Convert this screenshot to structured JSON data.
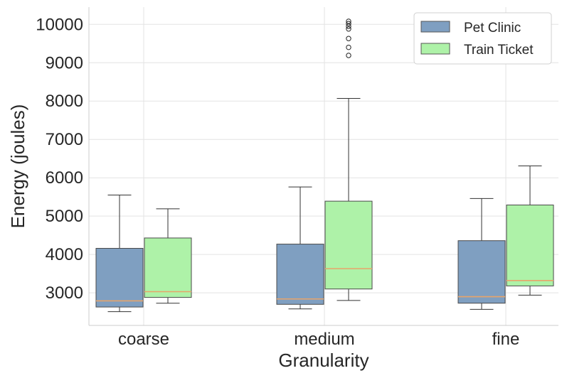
{
  "chart_data": {
    "type": "box",
    "categories": [
      "coarse",
      "medium",
      "fine"
    ],
    "xlabel": "Granularity",
    "ylabel": "Energy (joules)",
    "ylim": [
      2150,
      10450
    ],
    "yticks": [
      3000,
      4000,
      5000,
      6000,
      7000,
      8000,
      9000,
      10000
    ],
    "grid": true,
    "legend_position": "top-right",
    "series": [
      {
        "name": "Pet Clinic",
        "color": "#7f9fc1",
        "boxes": [
          {
            "whisker_low": 2510,
            "q1": 2630,
            "median": 2790,
            "q3": 4160,
            "whisker_high": 5550,
            "outliers": []
          },
          {
            "whisker_low": 2580,
            "q1": 2700,
            "median": 2840,
            "q3": 4270,
            "whisker_high": 5760,
            "outliers": []
          },
          {
            "whisker_low": 2570,
            "q1": 2730,
            "median": 2900,
            "q3": 4360,
            "whisker_high": 5460,
            "outliers": []
          }
        ]
      },
      {
        "name": "Train Ticket",
        "color": "#aef2a8",
        "boxes": [
          {
            "whisker_low": 2730,
            "q1": 2880,
            "median": 3030,
            "q3": 4430,
            "whisker_high": 5190,
            "outliers": []
          },
          {
            "whisker_low": 2800,
            "q1": 3100,
            "median": 3630,
            "q3": 5390,
            "whisker_high": 8070,
            "outliers": [
              9190,
              9400,
              9630,
              9880,
              9950,
              10020,
              10080
            ]
          },
          {
            "whisker_low": 2940,
            "q1": 3180,
            "median": 3320,
            "q3": 5290,
            "whisker_high": 6310,
            "outliers": []
          }
        ]
      }
    ],
    "median_color": "#e8a46a"
  }
}
